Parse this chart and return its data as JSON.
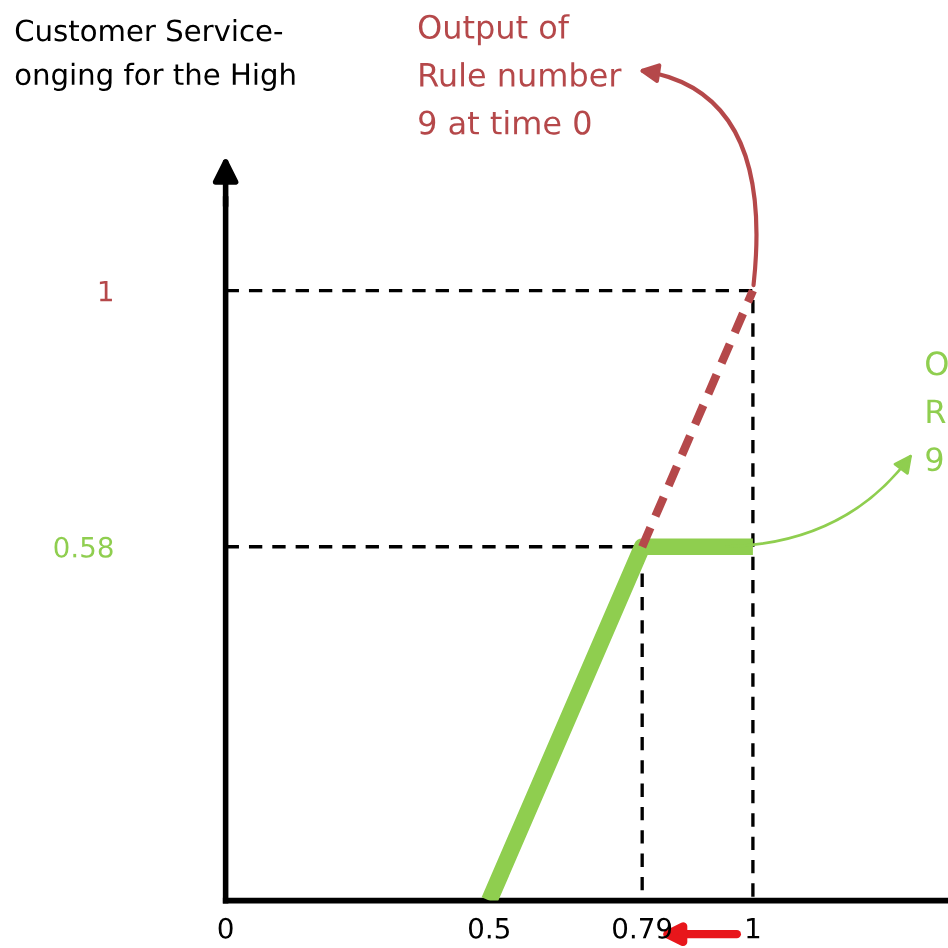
{
  "chart_data": {
    "type": "line",
    "title": "Customer Service-\nonging for the High",
    "series": [
      {
        "color": "#8fce4f",
        "x": [
          0.5,
          0.79,
          1
        ],
        "values": [
          0,
          0.58,
          0.58
        ],
        "line_style": "solid"
      },
      {
        "color": "#b5484a",
        "x": [
          0.79,
          1
        ],
        "values": [
          0.58,
          1
        ],
        "line_style": "dashed"
      },
      {
        "color": "#000000",
        "x": [
          0,
          1,
          1
        ],
        "values": [
          1,
          1,
          0
        ],
        "line_style": "dashed"
      },
      {
        "color": "#000000",
        "x": [
          0,
          0.79,
          0.79
        ],
        "values": [
          0.58,
          0.58,
          0
        ],
        "line_style": "dashed"
      }
    ],
    "xlim": [
      0,
      1.37
    ],
    "ylim": [
      0,
      1.15
    ],
    "xticks": [
      0,
      0.5,
      0.79,
      1
    ],
    "yticks": [
      0.58,
      1
    ],
    "annotations": [
      {
        "text": "Output of\nRule number\n9 at time 0",
        "x": 1,
        "y": 1
      },
      {
        "text": "O\nR\n9",
        "x": 0.94,
        "y": 0.58
      }
    ],
    "grid": false,
    "legend": false,
    "marker": "none"
  }
}
